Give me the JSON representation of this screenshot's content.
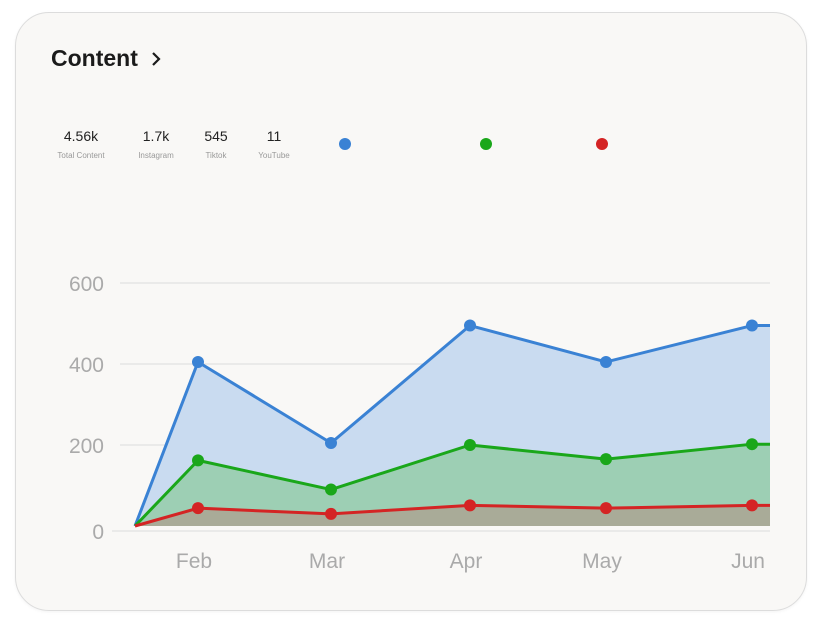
{
  "header": {
    "title": "Content",
    "chevron_icon": "chevron-right-icon"
  },
  "stats": [
    {
      "value": "4.56k",
      "label": "Total Content"
    },
    {
      "value": "1.7k",
      "label": "Instagram"
    },
    {
      "value": "545",
      "label": "Tiktok"
    },
    {
      "value": "11",
      "label": "YouTube"
    }
  ],
  "legend_colors": [
    "#3a82d4",
    "#1aa71a",
    "#d42424"
  ],
  "chart_data": {
    "type": "area",
    "categories": [
      "",
      "Feb",
      "Mar",
      "Apr",
      "May",
      "Jun"
    ],
    "series": [
      {
        "color": "#3a82d4",
        "fill": "#c9dbf0",
        "values": [
          0,
          405,
          205,
          495,
          405,
          495
        ]
      },
      {
        "color": "#1aa71a",
        "fill": "#9dcfb4",
        "values": [
          0,
          162,
          90,
          200,
          165,
          202
        ]
      },
      {
        "color": "#d42424",
        "fill": "#a9ab98",
        "values": [
          0,
          44,
          30,
          51,
          44,
          51
        ]
      }
    ],
    "yticks": [
      0,
      200,
      400,
      600
    ],
    "ylim": [
      0,
      600
    ],
    "grid": true,
    "stacked": false
  }
}
